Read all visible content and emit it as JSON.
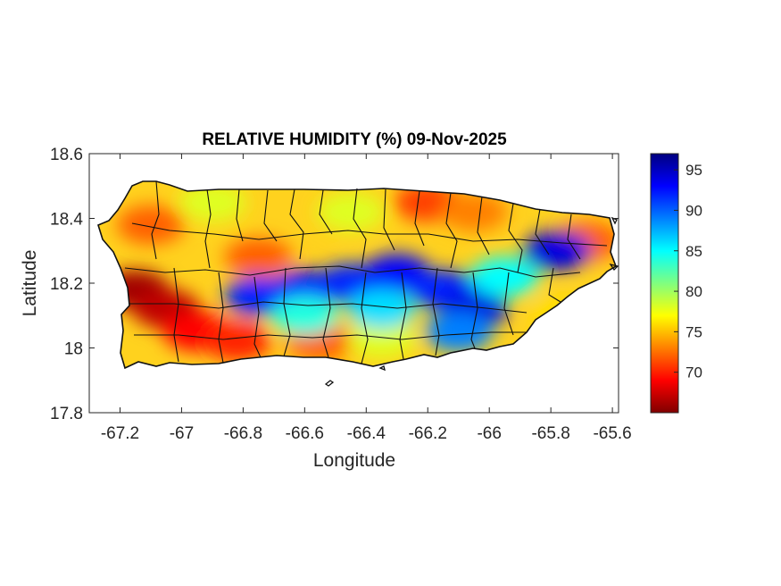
{
  "chart_data": {
    "type": "heatmap",
    "title": "RELATIVE HUMIDITY (%) 09-Nov-2025",
    "xlabel": "Longitude",
    "ylabel": "Latitude",
    "xlim": [
      -67.3,
      -65.58
    ],
    "ylim": [
      17.8,
      18.6
    ],
    "xticks": [
      -67.2,
      -67,
      -66.8,
      -66.6,
      -66.4,
      -66.2,
      -66,
      -65.8,
      -65.6
    ],
    "yticks": [
      17.8,
      18,
      18.2,
      18.4,
      18.6
    ],
    "xtick_labels": [
      "-67.2",
      "-67",
      "-66.8",
      "-66.6",
      "-66.4",
      "-66.2",
      "-66",
      "-65.8",
      "-65.6"
    ],
    "ytick_labels": [
      "17.8",
      "18",
      "18.2",
      "18.4",
      "18.6"
    ],
    "colorbar": {
      "colormap": "jet",
      "range": [
        65,
        97
      ],
      "ticks": [
        70,
        75,
        80,
        85,
        90,
        95
      ],
      "tick_labels": [
        "70",
        "75",
        "80",
        "85",
        "90",
        "95"
      ],
      "placement": "right"
    },
    "region": "Puerto Rico",
    "field_summary": [
      {
        "lon": -67.15,
        "lat": 18.18,
        "value": 66
      },
      {
        "lon": -67.05,
        "lat": 18.12,
        "value": 67
      },
      {
        "lon": -66.95,
        "lat": 18.05,
        "value": 69
      },
      {
        "lon": -66.82,
        "lat": 18.02,
        "value": 70
      },
      {
        "lon": -67.1,
        "lat": 18.38,
        "value": 72
      },
      {
        "lon": -66.75,
        "lat": 18.28,
        "value": 72
      },
      {
        "lon": -66.55,
        "lat": 18.02,
        "value": 72
      },
      {
        "lon": -66.2,
        "lat": 18.45,
        "value": 71
      },
      {
        "lon": -66.05,
        "lat": 18.42,
        "value": 73
      },
      {
        "lon": -65.68,
        "lat": 18.33,
        "value": 72
      },
      {
        "lon": -65.75,
        "lat": 18.1,
        "value": 76
      },
      {
        "lon": -66.35,
        "lat": 18.03,
        "value": 78
      },
      {
        "lon": -66.9,
        "lat": 18.45,
        "value": 78
      },
      {
        "lon": -66.45,
        "lat": 18.42,
        "value": 78
      },
      {
        "lon": -66.75,
        "lat": 18.16,
        "value": 92
      },
      {
        "lon": -66.6,
        "lat": 18.18,
        "value": 93
      },
      {
        "lon": -66.45,
        "lat": 18.2,
        "value": 92
      },
      {
        "lon": -66.3,
        "lat": 18.23,
        "value": 93
      },
      {
        "lon": -66.15,
        "lat": 18.18,
        "value": 92
      },
      {
        "lon": -66.05,
        "lat": 18.12,
        "value": 94
      },
      {
        "lon": -66.1,
        "lat": 18.05,
        "value": 89
      },
      {
        "lon": -65.78,
        "lat": 18.3,
        "value": 94
      },
      {
        "lon": -65.95,
        "lat": 18.22,
        "value": 85
      },
      {
        "lon": -66.6,
        "lat": 18.1,
        "value": 84
      },
      {
        "lon": -66.35,
        "lat": 18.12,
        "value": 86
      }
    ]
  }
}
